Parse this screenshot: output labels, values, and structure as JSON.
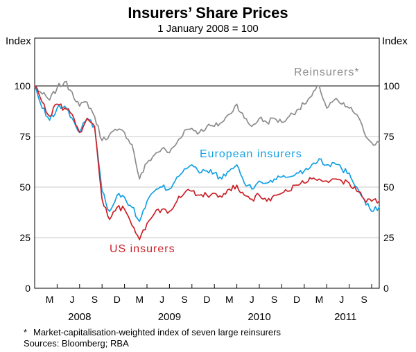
{
  "header": {
    "title": "Insurers’ Share Prices",
    "subtitle": "1 January 2008 = 100"
  },
  "chart_data": {
    "type": "line",
    "title": "Insurers’ Share Prices",
    "subtitle": "1 January 2008 = 100",
    "unit_label": "Index",
    "ylim": [
      0,
      123
    ],
    "yticks": [
      0,
      25,
      50,
      75,
      100
    ],
    "reference_line_value": 100,
    "grid": "horizontal",
    "gridline_color": "#c9c9c9",
    "axis_color": "#000000",
    "x_range": {
      "start": "Jan 2008",
      "end": "Nov 2011",
      "frequency": "monthly"
    },
    "x_axis": {
      "month_labels": [
        "M",
        "J",
        "S",
        "D",
        "M",
        "J",
        "S",
        "D",
        "M",
        "J",
        "S",
        "D",
        "M",
        "J",
        "S"
      ],
      "month_label_month_index": [
        2,
        5,
        8,
        11,
        14,
        17,
        20,
        23,
        26,
        29,
        32,
        35,
        38,
        41,
        44
      ],
      "year_labels": [
        "2008",
        "2009",
        "2010",
        "2011"
      ],
      "year_label_month_index": [
        6,
        18,
        30,
        41.5
      ],
      "tick_month_index": [
        3,
        6,
        9,
        12,
        15,
        18,
        21,
        24,
        27,
        30,
        33,
        36,
        39,
        42,
        45
      ]
    },
    "series": [
      {
        "name": "Reinsurers*",
        "color": "#8c8c8c",
        "values": [
          100,
          96,
          93,
          99,
          102,
          97,
          90,
          92,
          85,
          73,
          76,
          78,
          77,
          71,
          54,
          62,
          66,
          69,
          67,
          72,
          78,
          79,
          77,
          80,
          80,
          82,
          86,
          91,
          84,
          80,
          84,
          82,
          84,
          82,
          85,
          88,
          91,
          95,
          100,
          89,
          93,
          91,
          89,
          86,
          77,
          72,
          72
        ]
      },
      {
        "name": "European insurers",
        "color": "#12a0e3",
        "values": [
          100,
          89,
          83,
          89,
          90,
          84,
          77,
          84,
          80,
          48,
          38,
          46,
          45,
          40,
          33,
          43,
          48,
          50,
          49,
          55,
          59,
          61,
          57,
          58,
          57,
          54,
          58,
          61,
          52,
          49,
          53,
          52,
          54,
          55,
          55,
          57,
          58,
          61,
          64,
          61,
          62,
          59,
          57,
          50,
          44,
          38,
          40
        ]
      },
      {
        "name": "US insurers",
        "color": "#cb2027",
        "values": [
          100,
          92,
          85,
          91,
          89,
          86,
          77,
          84,
          80,
          44,
          34,
          40,
          39,
          31,
          24,
          32,
          37,
          39,
          38,
          43,
          47,
          48,
          46,
          46,
          47,
          45,
          49,
          51,
          46,
          44,
          46,
          43,
          46,
          47,
          48,
          51,
          52,
          54,
          54,
          53,
          54,
          53,
          52,
          48,
          44,
          43,
          43
        ]
      }
    ]
  },
  "footnote": {
    "marker": "*",
    "text": "Market-capitalisation-weighted index of seven large reinsurers",
    "sources": "Sources: Bloomberg; RBA"
  }
}
